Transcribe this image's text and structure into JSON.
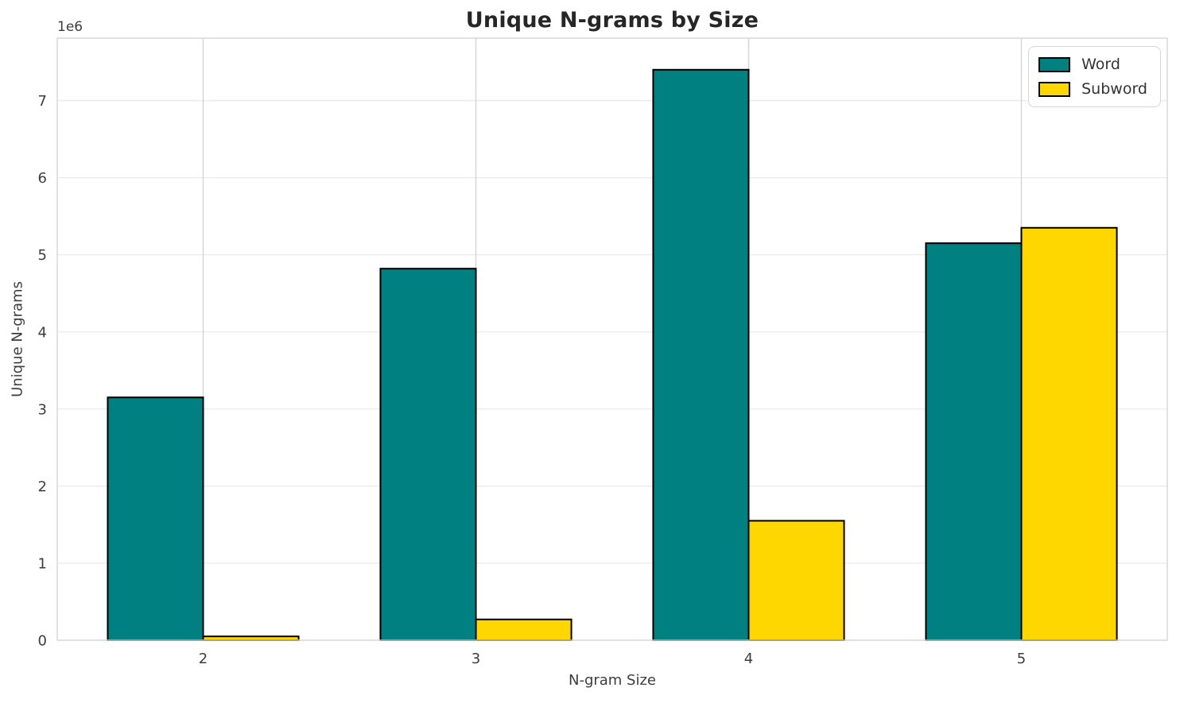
{
  "figure": {
    "title": "Unique N-grams by Size",
    "background_color": "#ffffff",
    "title_color": "#262626",
    "tick_label_color": "#3d3d3d",
    "grid_color_horizontal": "#ececec",
    "grid_color_vertical": "#d4d4d4",
    "spine_color": "#d9d9d9"
  },
  "chart_data": {
    "type": "bar",
    "title": "Unique N-grams by Size",
    "xlabel": "N-gram Size",
    "ylabel": "Unique N-grams",
    "y_offset_label": "1e6",
    "categories": [
      "2",
      "3",
      "4",
      "5"
    ],
    "series": [
      {
        "name": "Word",
        "color": "#008080",
        "values": [
          3150000,
          4820000,
          7400000,
          5150000
        ]
      },
      {
        "name": "Subword",
        "color": "#FFD700",
        "values": [
          50000,
          270000,
          1550000,
          5350000
        ]
      }
    ],
    "bar_edge_color": "#000000",
    "bar_edge_width": 2,
    "ylim": [
      0,
      7810000
    ],
    "yticks": [
      0,
      1000000,
      2000000,
      3000000,
      4000000,
      5000000,
      6000000,
      7000000
    ],
    "ytick_labels": [
      "0",
      "1",
      "2",
      "3",
      "4",
      "5",
      "6",
      "7"
    ],
    "grid": true,
    "legend_position": "upper right"
  }
}
